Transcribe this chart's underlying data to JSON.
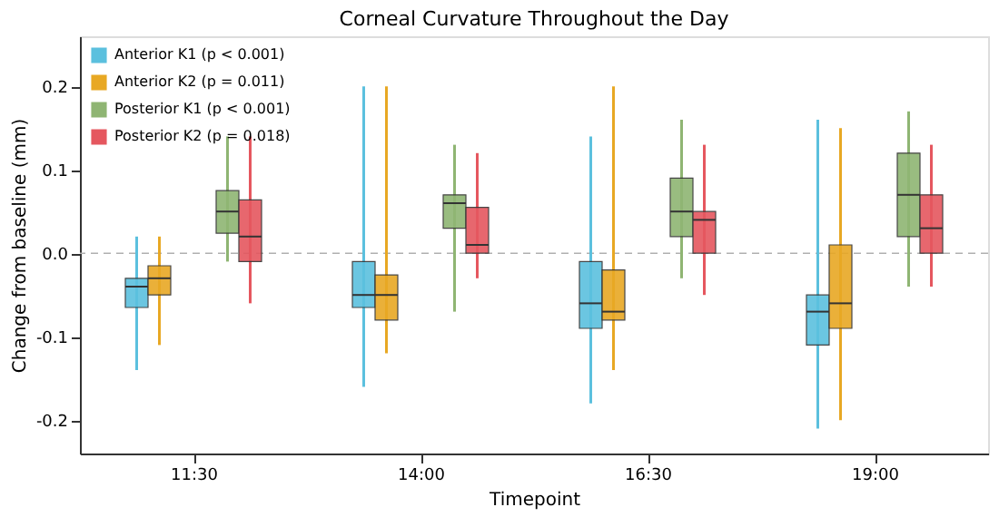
{
  "chart_data": {
    "type": "box",
    "title": "Corneal Curvature Throughout the Day",
    "xlabel": "Timepoint",
    "ylabel": "Change from baseline (mm)",
    "categories": [
      "11:30",
      "14:00",
      "16:30",
      "19:00"
    ],
    "series": [
      {
        "name": "Anterior K1 (p < 0.001)",
        "color": "#5bc0de",
        "boxes": [
          {
            "low": -0.14,
            "q1": -0.065,
            "median": -0.04,
            "q3": -0.03,
            "high": 0.02
          },
          {
            "low": -0.16,
            "q1": -0.065,
            "median": -0.05,
            "q3": -0.01,
            "high": 0.2
          },
          {
            "low": -0.18,
            "q1": -0.09,
            "median": -0.06,
            "q3": -0.01,
            "high": 0.14
          },
          {
            "low": -0.21,
            "q1": -0.11,
            "median": -0.07,
            "q3": -0.05,
            "high": 0.16
          }
        ]
      },
      {
        "name": "Anterior K2 (p = 0.011)",
        "color": "#e8a824",
        "boxes": [
          {
            "low": -0.11,
            "q1": -0.05,
            "median": -0.03,
            "q3": -0.015,
            "high": 0.02
          },
          {
            "low": -0.12,
            "q1": -0.08,
            "median": -0.05,
            "q3": -0.026,
            "high": 0.2
          },
          {
            "low": -0.14,
            "q1": -0.08,
            "median": -0.07,
            "q3": -0.02,
            "high": 0.2
          },
          {
            "low": -0.2,
            "q1": -0.09,
            "median": -0.06,
            "q3": 0.01,
            "high": 0.15
          }
        ]
      },
      {
        "name": "Posterior K1 (p < 0.001)",
        "color": "#8fb573",
        "boxes": [
          {
            "low": -0.01,
            "q1": 0.024,
            "median": 0.05,
            "q3": 0.075,
            "high": 0.14
          },
          {
            "low": -0.07,
            "q1": 0.03,
            "median": 0.06,
            "q3": 0.07,
            "high": 0.13
          },
          {
            "low": -0.03,
            "q1": 0.02,
            "median": 0.05,
            "q3": 0.09,
            "high": 0.16
          },
          {
            "low": -0.04,
            "q1": 0.02,
            "median": 0.07,
            "q3": 0.12,
            "high": 0.17
          }
        ]
      },
      {
        "name": "Posterior K2 (p = 0.018)",
        "color": "#e5575f",
        "boxes": [
          {
            "low": -0.06,
            "q1": -0.01,
            "median": 0.02,
            "q3": 0.064,
            "high": 0.14
          },
          {
            "low": -0.03,
            "q1": 0.0,
            "median": 0.01,
            "q3": 0.055,
            "high": 0.12
          },
          {
            "low": -0.05,
            "q1": 0.0,
            "median": 0.04,
            "q3": 0.05,
            "high": 0.13
          },
          {
            "low": -0.04,
            "q1": 0.0,
            "median": 0.03,
            "q3": 0.07,
            "high": 0.13
          }
        ]
      }
    ],
    "ylim": [
      -0.24,
      0.26
    ],
    "yticks": [
      -0.2,
      -0.1,
      {
        "value": 0,
        "label": "0.0"
      },
      0.1,
      0.2
    ],
    "ref_lines": [
      {
        "axis": "y",
        "value": 0,
        "color": "#b0b0b0",
        "line_style": "dashed"
      }
    ],
    "legend": "top left",
    "grid": false
  }
}
